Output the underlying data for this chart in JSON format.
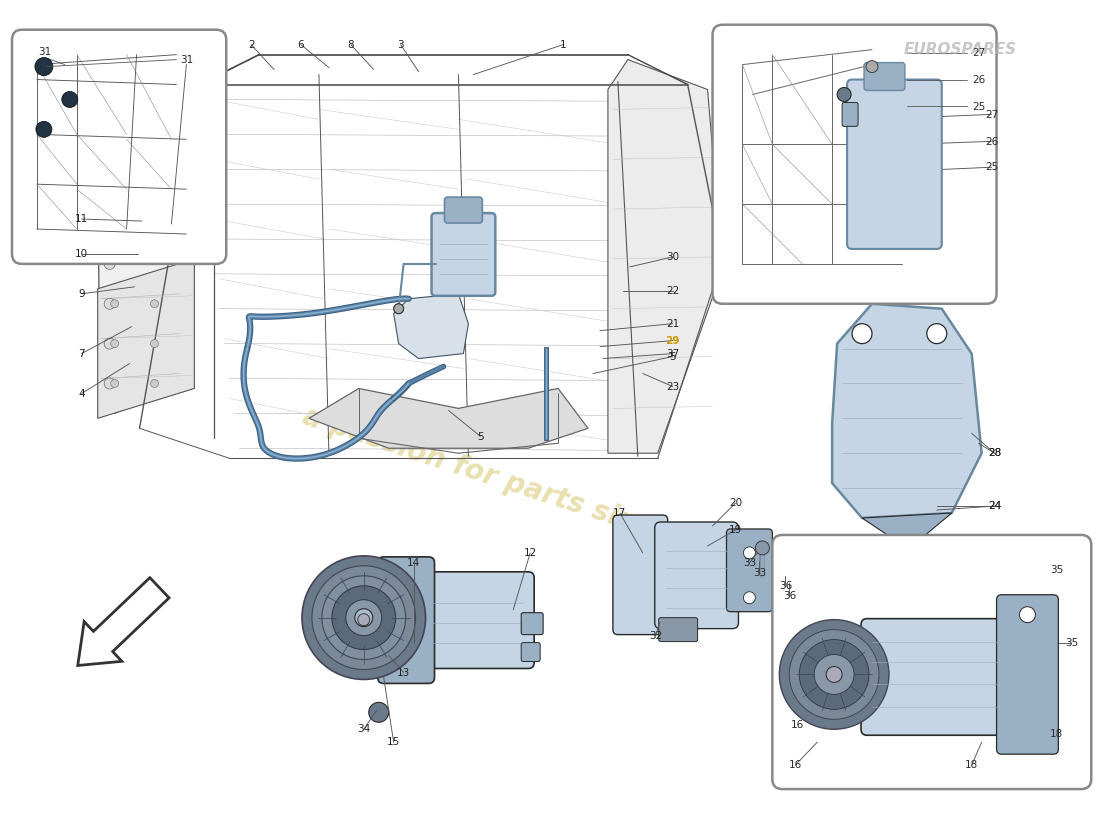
{
  "bg_color": "#ffffff",
  "lc": "#2a2a2a",
  "lc_light": "#666666",
  "lc_mid": "#888888",
  "part_blue_light": "#c5d5e5",
  "part_blue_mid": "#9ab0c5",
  "part_blue_dark": "#6888a0",
  "hose_dark": "#3a6080",
  "hose_light": "#5a80a8",
  "hose_highlight": "#8ab0d0",
  "watermark_text": "a passion for parts since 1985",
  "watermark_color": "#d4c060",
  "logo_text": "EUROSPARES",
  "logo_color": "#b0b0b0",
  "callout_color": "#222222",
  "callout_29_color": "#cc9900",
  "inset_edge": "#888888",
  "figsize": [
    11.0,
    8.0
  ],
  "dpi": 100,
  "xlim": [
    0,
    11
  ],
  "ylim": [
    0,
    8
  ]
}
